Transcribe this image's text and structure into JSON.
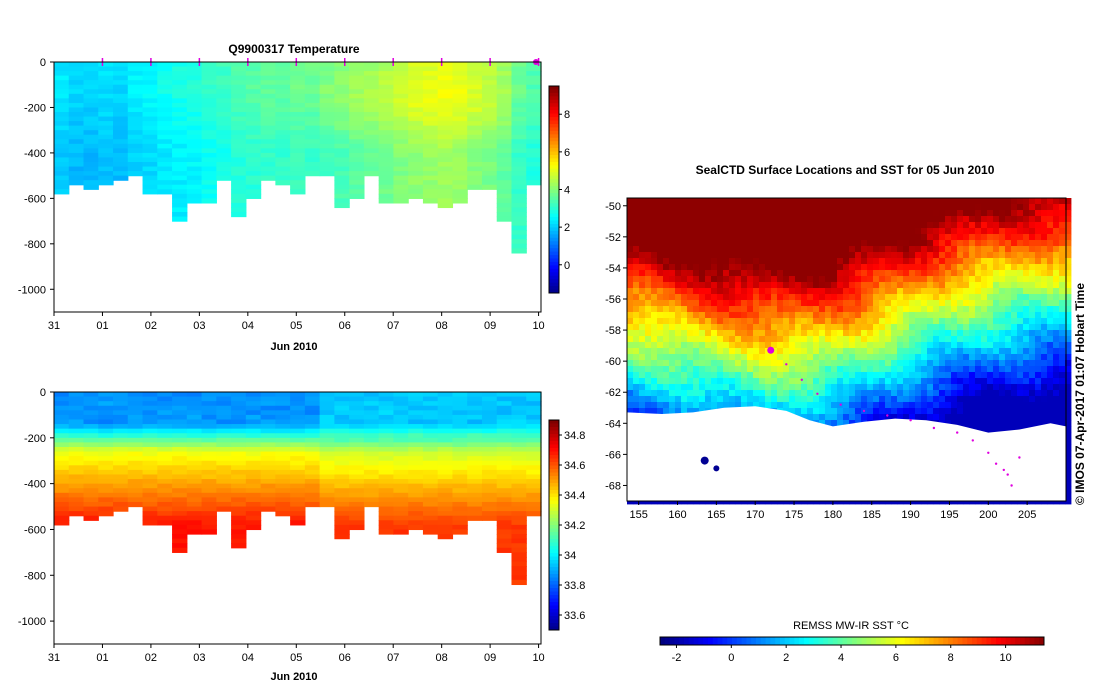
{
  "colors": {
    "background": "#ffffff",
    "marker": "#e000e0",
    "land": "#ffffff",
    "jet": [
      "#00007f",
      "#0000ff",
      "#007fff",
      "#00ffff",
      "#7fff7f",
      "#ffff00",
      "#ff7f00",
      "#ff0000",
      "#7f0000"
    ]
  },
  "chart_data": [
    {
      "id": "temperature-section",
      "type": "heatmap",
      "title": "Q9900317  Temperature",
      "xlabel": "Jun 2010",
      "x_ticks": [
        "31",
        "01",
        "02",
        "03",
        "04",
        "05",
        "06",
        "07",
        "08",
        "09",
        "10"
      ],
      "y_ticks": [
        "0",
        "-200",
        "-400",
        "-600",
        "-800",
        "-1000"
      ],
      "ylim": [
        -1100,
        0
      ],
      "colorbar": {
        "ticks": [
          "8",
          "6",
          "4",
          "2",
          "0"
        ],
        "range": [
          -1.5,
          9.5
        ]
      },
      "profile_depths": [
        570,
        540,
        545,
        535,
        520,
        495,
        565,
        580,
        700,
        620,
        605,
        510,
        675,
        590,
        510,
        535,
        580,
        485,
        495,
        630,
        600,
        495,
        610,
        610,
        590,
        605,
        625,
        610,
        560,
        545,
        690,
        825,
        540
      ],
      "profile_markers": [
        "01",
        "02",
        "03",
        "04",
        "05",
        "06",
        "07",
        "08",
        "09",
        "10"
      ],
      "surface_temp": [
        2.4,
        2.2,
        2.2,
        2.3,
        2.2,
        2.5,
        2.6,
        2.8,
        2.9,
        3.0,
        3.2,
        3.3,
        3.5,
        3.6,
        3.7,
        3.7,
        3.8,
        3.8,
        3.9,
        4.0,
        4.2,
        4.3,
        4.5,
        4.7,
        4.9,
        5.0,
        5.1,
        5.0,
        4.8,
        4.6,
        4.3,
        3.8,
        3.5
      ]
    },
    {
      "id": "salinity-section",
      "type": "heatmap",
      "title": "",
      "xlabel": "Jun 2010",
      "x_ticks": [
        "31",
        "01",
        "02",
        "03",
        "04",
        "05",
        "06",
        "07",
        "08",
        "09",
        "10"
      ],
      "y_ticks": [
        "0",
        "-200",
        "-400",
        "-600",
        "-800",
        "-1000"
      ],
      "ylim": [
        -1100,
        0
      ],
      "colorbar": {
        "ticks": [
          "34.8",
          "34.6",
          "34.4",
          "34.2",
          "34",
          "33.8",
          "33.6"
        ],
        "range": [
          33.5,
          34.9
        ]
      }
    },
    {
      "id": "sst-map",
      "type": "heatmap",
      "title": "SealCTD Surface Locations and SST for 05 Jun 2010",
      "x_ticks": [
        "155",
        "160",
        "165",
        "170",
        "175",
        "180",
        "185",
        "190",
        "195",
        "200",
        "205"
      ],
      "y_ticks": [
        "-50",
        "-52",
        "-54",
        "-56",
        "-58",
        "-60",
        "-62",
        "-64",
        "-66",
        "-68"
      ],
      "xlim": [
        153.5,
        210
      ],
      "ylim": [
        -69,
        -49.5
      ],
      "colorbar_label": "REMSS MW-IR SST °C",
      "colorbar_ticks": [
        "-2",
        "0",
        "2",
        "4",
        "6",
        "8",
        "10"
      ],
      "colorbar_range": [
        -2.6,
        11.4
      ],
      "track": [
        [
          172,
          -59.4
        ],
        [
          174,
          -60.2
        ],
        [
          176,
          -61.2
        ],
        [
          178,
          -62.1
        ],
        [
          181,
          -62.8
        ],
        [
          184,
          -63.2
        ],
        [
          187,
          -63.5
        ],
        [
          190,
          -63.8
        ],
        [
          193,
          -64.3
        ],
        [
          196,
          -64.6
        ],
        [
          198,
          -65.1
        ],
        [
          200,
          -65.9
        ],
        [
          202,
          -67.0
        ],
        [
          203,
          -68.0
        ],
        [
          202.5,
          -67.3
        ],
        [
          201,
          -66.6
        ],
        [
          204,
          -66.2
        ]
      ],
      "current_position": [
        172,
        -59.3
      ]
    }
  ],
  "credit": "© IMOS 07-Apr-2017 01:07 Hobart Time"
}
